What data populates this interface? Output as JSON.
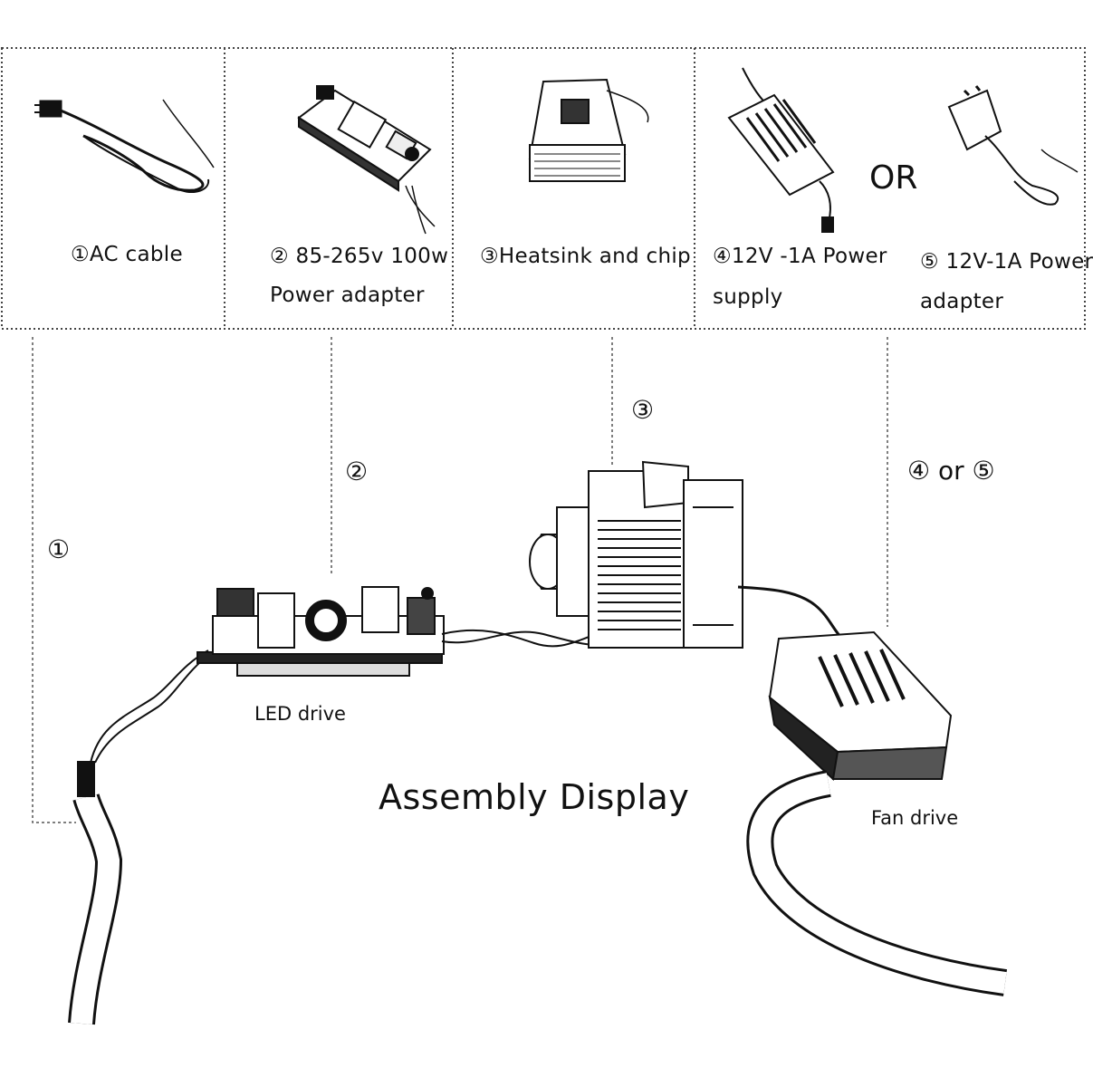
{
  "parts": [
    {
      "id": 1,
      "label_line1": "①AC cable",
      "label_line2": ""
    },
    {
      "id": 2,
      "label_line1": "② 85-265v 100w",
      "label_line2": "Power adapter"
    },
    {
      "id": 3,
      "label_line1": "③Heatsink and chip",
      "label_line2": ""
    },
    {
      "id": 4,
      "label_line1": "④12V -1A Power",
      "label_line2": "supply"
    },
    {
      "id": 5,
      "label_line1": "⑤ 12V-1A Power",
      "label_line2": "adapter"
    }
  ],
  "or_label": "OR",
  "callouts": {
    "c1": "①",
    "c2": "②",
    "c3": "③",
    "c45": "④ or ⑤"
  },
  "assembly": {
    "title": "Assembly Display",
    "led_drive": "LED drive",
    "fan_drive": "Fan drive"
  },
  "icons": [
    "ac-cable-icon",
    "power-adapter-board-icon",
    "heatsink-chip-icon",
    "power-supply-icon",
    "wall-adapter-icon",
    "led-driver-board-icon",
    "heatsink-fan-assembly-icon",
    "fan-driver-box-icon"
  ]
}
